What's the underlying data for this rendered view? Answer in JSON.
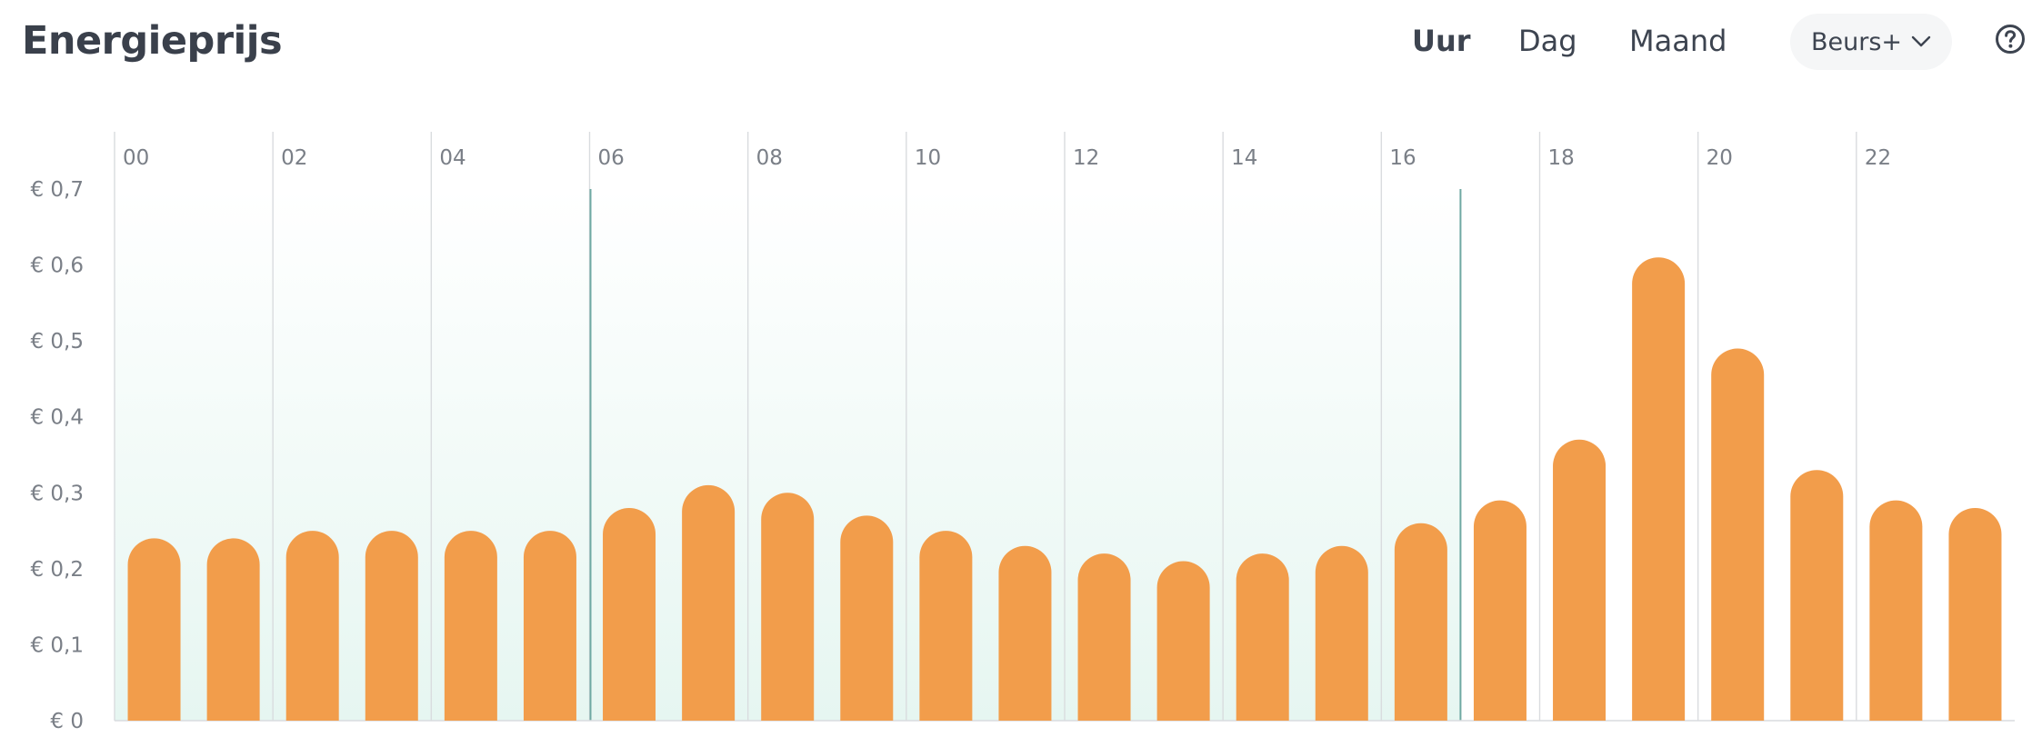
{
  "header": {
    "title": "Energieprijs",
    "tabs": [
      {
        "label": "Uur",
        "active": true
      },
      {
        "label": "Dag",
        "active": false
      },
      {
        "label": "Maand",
        "active": false
      }
    ],
    "dropdown": {
      "label": "Beurs+",
      "icon": "chevron-down-icon"
    },
    "help_icon": "help-circle-icon"
  },
  "colors": {
    "bar": "#f29d4b",
    "highlight_line": "#6fa9a3",
    "highlight_fill": "#e6f6f1",
    "gridline": "#d9dcdf",
    "text": "#3d4450",
    "tick_text": "#7a7f87"
  },
  "chart_data": {
    "type": "bar",
    "x": [
      "00",
      "01",
      "02",
      "03",
      "04",
      "05",
      "06",
      "07",
      "08",
      "09",
      "10",
      "11",
      "12",
      "13",
      "14",
      "15",
      "16",
      "17",
      "18",
      "19",
      "20",
      "21",
      "22",
      "23"
    ],
    "x_tick_labels": [
      "00",
      "02",
      "04",
      "06",
      "08",
      "10",
      "12",
      "14",
      "16",
      "18",
      "20",
      "22"
    ],
    "values": [
      0.24,
      0.24,
      0.25,
      0.25,
      0.25,
      0.25,
      0.28,
      0.31,
      0.3,
      0.27,
      0.25,
      0.23,
      0.22,
      0.21,
      0.22,
      0.23,
      0.26,
      0.29,
      0.37,
      0.61,
      0.49,
      0.33,
      0.29,
      0.28
    ],
    "ylim": [
      0,
      0.7
    ],
    "y_ticks": [
      {
        "value": 0,
        "label": "€ 0"
      },
      {
        "value": 0.1,
        "label": "€ 0,1"
      },
      {
        "value": 0.2,
        "label": "€ 0,2"
      },
      {
        "value": 0.3,
        "label": "€ 0,3"
      },
      {
        "value": 0.4,
        "label": "€ 0,4"
      },
      {
        "value": 0.5,
        "label": "€ 0,5"
      },
      {
        "value": 0.6,
        "label": "€ 0,6"
      },
      {
        "value": 0.7,
        "label": "€ 0,7"
      }
    ],
    "highlight_ranges": [
      [
        0,
        6
      ],
      [
        6,
        17
      ]
    ],
    "grid": true,
    "title": "",
    "xlabel": "",
    "ylabel": ""
  }
}
